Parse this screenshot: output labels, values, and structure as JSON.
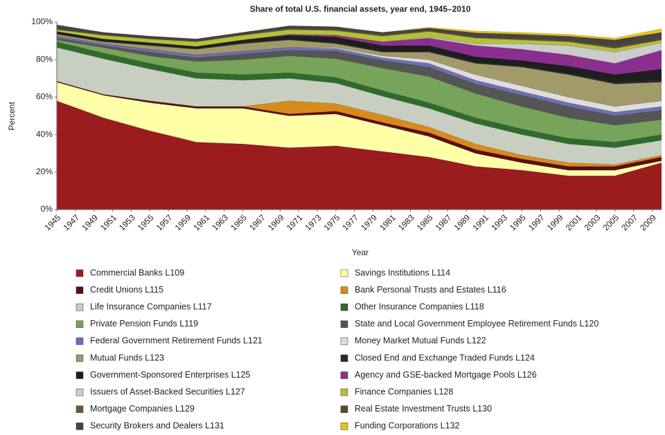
{
  "chart_data": {
    "type": "stacked_area",
    "title": "Share of total U.S. financial assets, year end, 1945–2010",
    "x_label": "Year",
    "y_label": "Percent",
    "x": [
      1945,
      1950,
      1955,
      1960,
      1965,
      1970,
      1975,
      1980,
      1985,
      1990,
      1995,
      2000,
      2005,
      2010
    ],
    "xlim": [
      1945,
      2010
    ],
    "xticks": [
      1945,
      1947,
      1949,
      1951,
      1953,
      1955,
      1957,
      1959,
      1961,
      1963,
      1965,
      1967,
      1969,
      1971,
      1973,
      1975,
      1977,
      1979,
      1981,
      1983,
      1985,
      1987,
      1989,
      1991,
      1993,
      1995,
      1997,
      1999,
      2001,
      2003,
      2005,
      2007,
      2009
    ],
    "ylim": [
      0,
      100
    ],
    "yticks": [
      {
        "value": 0,
        "label": "0%"
      },
      {
        "value": 20,
        "label": "20%"
      },
      {
        "value": 40,
        "label": "40%"
      },
      {
        "value": 60,
        "label": "60%"
      },
      {
        "value": 80,
        "label": "80%"
      },
      {
        "value": 100,
        "label": "100%"
      }
    ],
    "series": [
      {
        "name": "Commercial Banks L109",
        "color": "#9b1c1f",
        "values": [
          58,
          49,
          42,
          36,
          35,
          33,
          34,
          31,
          28,
          23,
          21,
          18,
          18,
          25
        ]
      },
      {
        "name": "Savings Institutions L114",
        "color": "#ffffa8",
        "values": [
          10,
          12,
          15,
          18,
          19,
          17,
          17,
          14,
          11,
          7,
          4,
          3,
          3,
          1
        ]
      },
      {
        "name": "Credit Unions L115",
        "color": "#5a1010",
        "values": [
          0.5,
          0.5,
          1,
          1,
          1,
          1,
          1.5,
          1.5,
          2,
          2,
          2,
          2,
          2,
          2
        ]
      },
      {
        "name": "Bank Personal Trusts and Estates L116",
        "color": "#d98a1c",
        "values": [
          0,
          0,
          0,
          0,
          0,
          7,
          4,
          4,
          3,
          3,
          2,
          2,
          1,
          1
        ]
      },
      {
        "name": "Life Insurance Companies L117",
        "color": "#c8cfc0",
        "values": [
          18,
          19,
          17,
          15,
          14,
          12,
          11,
          10,
          10,
          11,
          11,
          10,
          9,
          8
        ]
      },
      {
        "name": "Other Insurance Companies L118",
        "color": "#2f6b2a",
        "values": [
          3,
          3,
          3,
          3,
          3,
          3,
          3,
          3,
          3,
          3,
          3,
          3,
          3,
          3
        ]
      },
      {
        "name": "Private Pension Funds L119",
        "color": "#77a35a",
        "values": [
          1,
          3,
          4,
          6,
          8,
          9,
          10,
          12,
          14,
          13,
          12,
          11,
          9,
          8
        ]
      },
      {
        "name": "State and Local Government Employee Retirement Funds L120",
        "color": "#555555",
        "values": [
          1,
          1,
          2,
          2,
          3,
          3,
          4,
          4,
          5,
          5,
          6,
          6,
          5,
          5
        ]
      },
      {
        "name": "Federal Government Retirement Funds L121",
        "color": "#6f6fb3",
        "values": [
          1,
          1,
          1.5,
          1.5,
          1.5,
          1.5,
          1.5,
          1.5,
          2,
          2,
          2,
          2,
          2,
          2
        ]
      },
      {
        "name": "Money Market Mutual Funds L122",
        "color": "#dddddd",
        "values": [
          0,
          0,
          0,
          0,
          0,
          0,
          0.5,
          1,
          2,
          3,
          3,
          3,
          3,
          3
        ]
      },
      {
        "name": "Mutual Funds L123",
        "color": "#a39a6a",
        "values": [
          1,
          1,
          2,
          3,
          4,
          4,
          2,
          2,
          4,
          6,
          10,
          12,
          12,
          10
        ]
      },
      {
        "name": "Closed End and Exchange Traded Funds L124",
        "color": "#2a2a2a",
        "values": [
          0.5,
          0.5,
          0.5,
          0.5,
          0.5,
          0.5,
          0.5,
          0.5,
          0.5,
          0.5,
          0.5,
          0.5,
          1,
          1
        ]
      },
      {
        "name": "Government-Sponsored Enterprises L125",
        "color": "#1e1e1e",
        "values": [
          1,
          1,
          1,
          1,
          1.5,
          2,
          3,
          3,
          3,
          3,
          3,
          4,
          4,
          6
        ]
      },
      {
        "name": "Agency and GSE-backed Mortgage Pools L126",
        "color": "#8b2f8f",
        "values": [
          0,
          0,
          0,
          0,
          0,
          0.5,
          1,
          2,
          4,
          6,
          6,
          6,
          6,
          10
        ]
      },
      {
        "name": "Issuers of Asset-Backed Securities L127",
        "color": "#cccccc",
        "values": [
          0,
          0,
          0,
          0,
          0,
          0,
          0,
          0,
          0.5,
          1,
          3,
          5,
          6,
          4
        ]
      },
      {
        "name": "Finance Companies L128",
        "color": "#b5c03a",
        "values": [
          1,
          2,
          2,
          2.5,
          2.5,
          2.5,
          2.5,
          3,
          3,
          3,
          2,
          2,
          2,
          1.5
        ]
      },
      {
        "name": "Mortgage Companies L129",
        "color": "#6b5a3a",
        "values": [
          0.5,
          0.5,
          0.5,
          0.5,
          0.5,
          0.5,
          0.5,
          0.5,
          0.5,
          0.5,
          0.5,
          0.5,
          0.5,
          0.3
        ]
      },
      {
        "name": "Real Estate Investment Trusts L130",
        "color": "#5a4a2a",
        "values": [
          0,
          0,
          0,
          0,
          0,
          0.5,
          0.5,
          0.5,
          0.3,
          0.3,
          0.5,
          0.5,
          1,
          0.7
        ]
      },
      {
        "name": "Security Brokers and Dealers L131",
        "color": "#444444",
        "values": [
          2,
          1,
          1,
          1,
          1,
          1,
          1,
          1,
          1,
          2,
          2,
          2,
          3,
          3
        ]
      },
      {
        "name": "Funding Corporations L132",
        "color": "#e8c21a",
        "values": [
          0,
          0,
          0,
          0,
          0,
          0,
          0,
          0,
          0.5,
          1,
          1,
          1,
          1,
          2
        ]
      }
    ]
  }
}
